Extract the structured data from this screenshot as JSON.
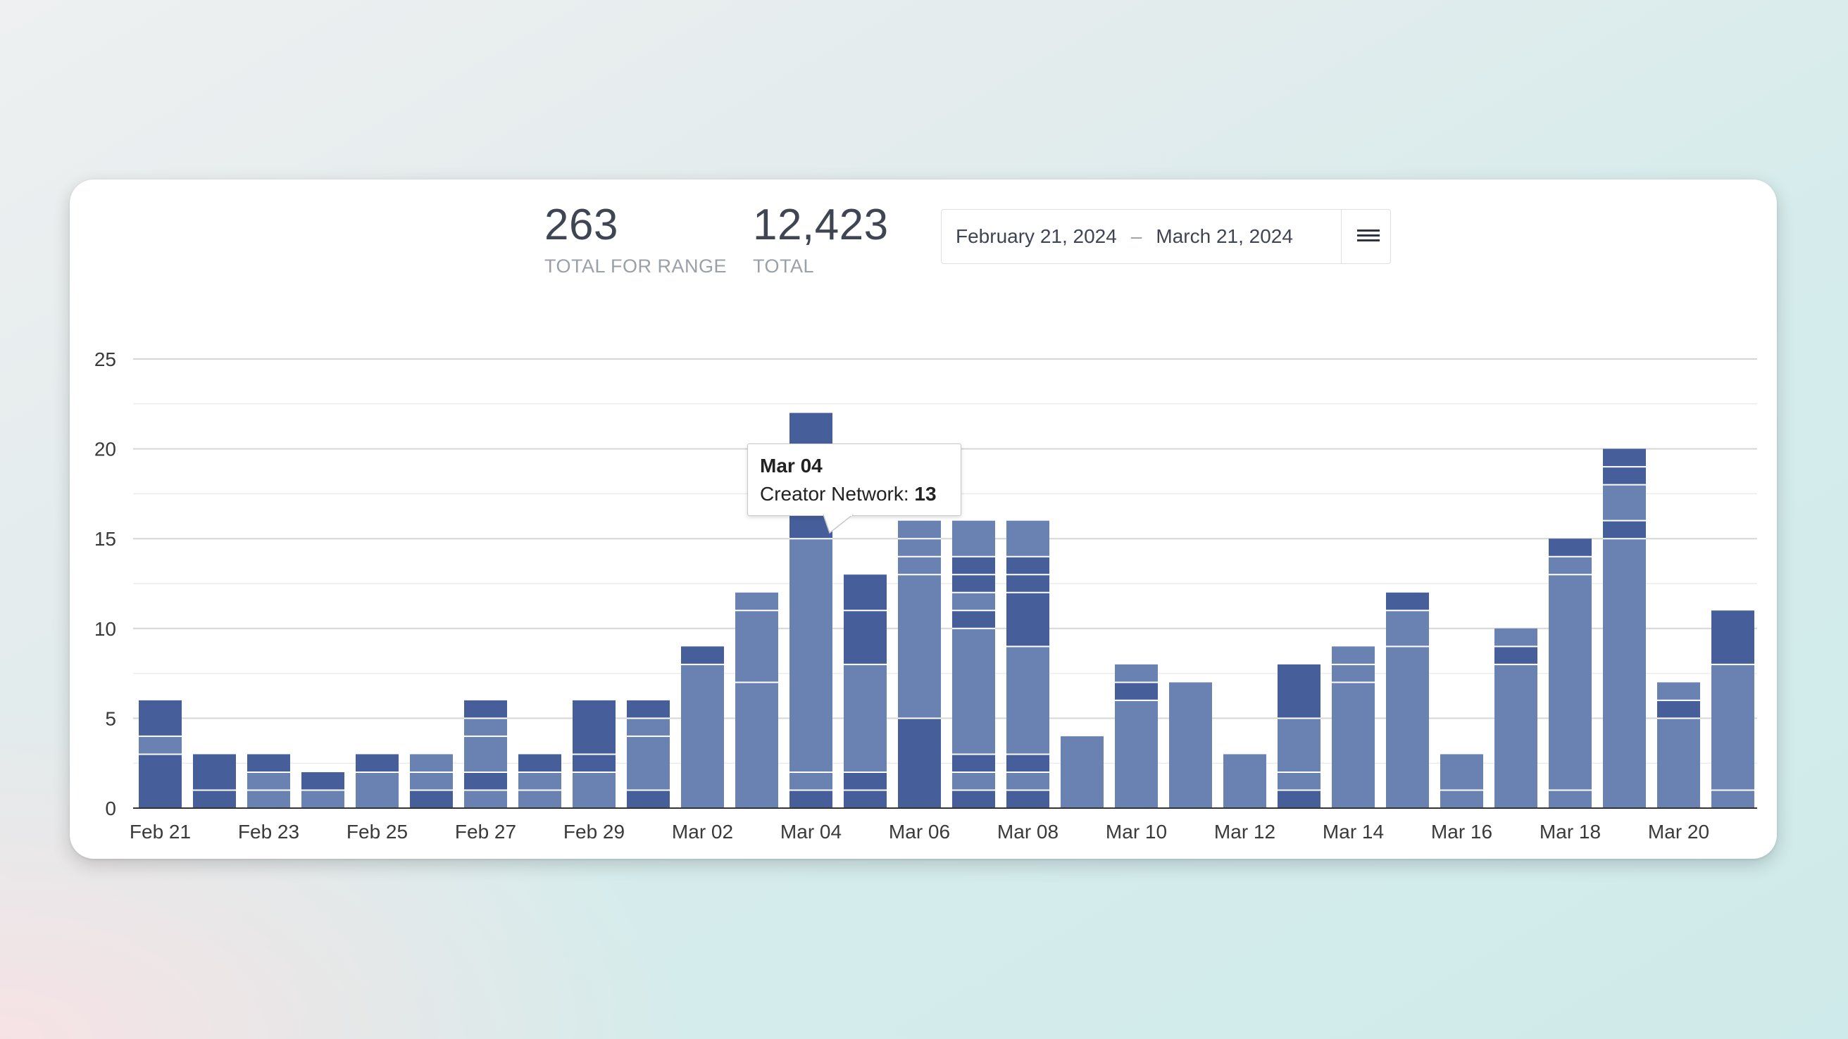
{
  "stats": {
    "range_value": "263",
    "range_label": "TOTAL FOR RANGE",
    "total_value": "12,423",
    "total_label": "TOTAL"
  },
  "date_range": {
    "start": "February 21, 2024",
    "separator": "–",
    "end": "March 21, 2024",
    "menu_icon": "hamburger-menu-icon"
  },
  "tooltip": {
    "date": "Mar 04",
    "series_label": "Creator Network:",
    "value": "13"
  },
  "colors": {
    "light_segment": "#6a82b2",
    "dark_segment": "#465f9b",
    "segment_separator": "#ffffff"
  },
  "chart_data": {
    "type": "bar",
    "stacked": true,
    "ylim": [
      0,
      25
    ],
    "yticks": [
      0,
      5,
      10,
      15,
      20,
      25
    ],
    "grid": true,
    "x_tick_labels": [
      "Feb 21",
      "Feb 23",
      "Feb 25",
      "Feb 27",
      "Feb 29",
      "Mar 02",
      "Mar 04",
      "Mar 06",
      "Mar 08",
      "Mar 10",
      "Mar 12",
      "Mar 14",
      "Mar 16",
      "Mar 18",
      "Mar 20"
    ],
    "categories": [
      "Feb 21",
      "Feb 22",
      "Feb 23",
      "Feb 24",
      "Feb 25",
      "Feb 26",
      "Feb 27",
      "Feb 28",
      "Feb 29",
      "Mar 01",
      "Mar 02",
      "Mar 03",
      "Mar 04",
      "Mar 05",
      "Mar 06",
      "Mar 07",
      "Mar 08",
      "Mar 09",
      "Mar 10",
      "Mar 11",
      "Mar 12",
      "Mar 13",
      "Mar 14",
      "Mar 15",
      "Mar 16",
      "Mar 17",
      "Mar 18",
      "Mar 19",
      "Mar 20",
      "Mar 21"
    ],
    "totals": [
      6,
      3,
      3,
      2,
      3,
      3,
      6,
      3,
      6,
      6,
      9,
      12,
      22,
      13,
      16,
      16,
      16,
      4,
      8,
      7,
      3,
      8,
      9,
      12,
      3,
      10,
      15,
      20,
      7,
      11
    ],
    "stacks": [
      [
        {
          "v": 3,
          "c": "dark"
        },
        {
          "v": 1,
          "c": "light"
        },
        {
          "v": 2,
          "c": "dark"
        }
      ],
      [
        {
          "v": 1,
          "c": "dark"
        },
        {
          "v": 2,
          "c": "dark"
        }
      ],
      [
        {
          "v": 1,
          "c": "light"
        },
        {
          "v": 1,
          "c": "light"
        },
        {
          "v": 1,
          "c": "dark"
        }
      ],
      [
        {
          "v": 1,
          "c": "light"
        },
        {
          "v": 1,
          "c": "dark"
        }
      ],
      [
        {
          "v": 2,
          "c": "light"
        },
        {
          "v": 1,
          "c": "dark"
        }
      ],
      [
        {
          "v": 1,
          "c": "dark"
        },
        {
          "v": 1,
          "c": "light"
        },
        {
          "v": 1,
          "c": "light"
        }
      ],
      [
        {
          "v": 1,
          "c": "light"
        },
        {
          "v": 1,
          "c": "dark"
        },
        {
          "v": 2,
          "c": "light"
        },
        {
          "v": 1,
          "c": "light"
        },
        {
          "v": 1,
          "c": "dark"
        }
      ],
      [
        {
          "v": 1,
          "c": "light"
        },
        {
          "v": 1,
          "c": "light"
        },
        {
          "v": 1,
          "c": "dark"
        }
      ],
      [
        {
          "v": 2,
          "c": "light"
        },
        {
          "v": 1,
          "c": "dark"
        },
        {
          "v": 3,
          "c": "dark"
        }
      ],
      [
        {
          "v": 1,
          "c": "dark"
        },
        {
          "v": 3,
          "c": "light"
        },
        {
          "v": 1,
          "c": "light"
        },
        {
          "v": 1,
          "c": "dark"
        }
      ],
      [
        {
          "v": 8,
          "c": "light"
        },
        {
          "v": 1,
          "c": "dark"
        }
      ],
      [
        {
          "v": 7,
          "c": "light"
        },
        {
          "v": 4,
          "c": "light"
        },
        {
          "v": 1,
          "c": "light"
        }
      ],
      [
        {
          "v": 1,
          "c": "dark"
        },
        {
          "v": 1,
          "c": "light"
        },
        {
          "v": 13,
          "c": "light"
        },
        {
          "v": 5,
          "c": "dark"
        },
        {
          "v": 2,
          "c": "dark"
        }
      ],
      [
        {
          "v": 1,
          "c": "dark"
        },
        {
          "v": 1,
          "c": "dark"
        },
        {
          "v": 6,
          "c": "light"
        },
        {
          "v": 3,
          "c": "dark"
        },
        {
          "v": 2,
          "c": "dark"
        }
      ],
      [
        {
          "v": 5,
          "c": "dark"
        },
        {
          "v": 8,
          "c": "light"
        },
        {
          "v": 1,
          "c": "light"
        },
        {
          "v": 1,
          "c": "light"
        },
        {
          "v": 1,
          "c": "light"
        }
      ],
      [
        {
          "v": 1,
          "c": "dark"
        },
        {
          "v": 1,
          "c": "light"
        },
        {
          "v": 1,
          "c": "dark"
        },
        {
          "v": 7,
          "c": "light"
        },
        {
          "v": 1,
          "c": "dark"
        },
        {
          "v": 1,
          "c": "light"
        },
        {
          "v": 1,
          "c": "dark"
        },
        {
          "v": 1,
          "c": "dark"
        },
        {
          "v": 2,
          "c": "light"
        }
      ],
      [
        {
          "v": 1,
          "c": "dark"
        },
        {
          "v": 1,
          "c": "light"
        },
        {
          "v": 1,
          "c": "dark"
        },
        {
          "v": 6,
          "c": "light"
        },
        {
          "v": 3,
          "c": "dark"
        },
        {
          "v": 1,
          "c": "dark"
        },
        {
          "v": 1,
          "c": "dark"
        },
        {
          "v": 2,
          "c": "light"
        }
      ],
      [
        {
          "v": 4,
          "c": "light"
        }
      ],
      [
        {
          "v": 6,
          "c": "light"
        },
        {
          "v": 1,
          "c": "dark"
        },
        {
          "v": 1,
          "c": "light"
        }
      ],
      [
        {
          "v": 7,
          "c": "light"
        }
      ],
      [
        {
          "v": 3,
          "c": "light"
        }
      ],
      [
        {
          "v": 1,
          "c": "dark"
        },
        {
          "v": 1,
          "c": "light"
        },
        {
          "v": 3,
          "c": "light"
        },
        {
          "v": 3,
          "c": "dark"
        }
      ],
      [
        {
          "v": 7,
          "c": "light"
        },
        {
          "v": 1,
          "c": "light"
        },
        {
          "v": 1,
          "c": "light"
        }
      ],
      [
        {
          "v": 9,
          "c": "light"
        },
        {
          "v": 2,
          "c": "light"
        },
        {
          "v": 1,
          "c": "dark"
        }
      ],
      [
        {
          "v": 1,
          "c": "light"
        },
        {
          "v": 2,
          "c": "light"
        }
      ],
      [
        {
          "v": 8,
          "c": "light"
        },
        {
          "v": 1,
          "c": "dark"
        },
        {
          "v": 1,
          "c": "light"
        }
      ],
      [
        {
          "v": 1,
          "c": "light"
        },
        {
          "v": 12,
          "c": "light"
        },
        {
          "v": 1,
          "c": "light"
        },
        {
          "v": 1,
          "c": "dark"
        }
      ],
      [
        {
          "v": 15,
          "c": "light"
        },
        {
          "v": 1,
          "c": "dark"
        },
        {
          "v": 2,
          "c": "light"
        },
        {
          "v": 1,
          "c": "dark"
        },
        {
          "v": 1,
          "c": "dark"
        }
      ],
      [
        {
          "v": 5,
          "c": "light"
        },
        {
          "v": 1,
          "c": "dark"
        },
        {
          "v": 1,
          "c": "light"
        }
      ],
      [
        {
          "v": 1,
          "c": "light"
        },
        {
          "v": 7,
          "c": "light"
        },
        {
          "v": 3,
          "c": "dark"
        }
      ]
    ]
  }
}
